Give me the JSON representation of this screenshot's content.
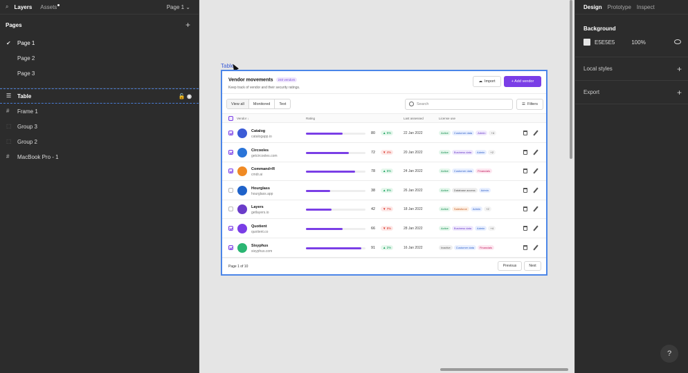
{
  "left_panel": {
    "tabs": {
      "layers": "Layers",
      "assets": "Assets"
    },
    "page_selector": "Page 1 ⌄",
    "pages_header": "Pages",
    "pages": [
      "Page 1",
      "Page 2",
      "Page 3"
    ],
    "layers": [
      "Table",
      "Frame 1",
      "Group 3",
      "Group 2",
      "MacBook Pro - 1"
    ]
  },
  "canvas": {
    "frame_label": "Table",
    "card": {
      "title": "Vendor movements",
      "badge": "240 vendors",
      "subtitle": "Keep track of vendor and their security ratings.",
      "import_label": "Import",
      "add_label": "+ Add vendor",
      "segments": [
        "View all",
        "Monitored",
        "Text"
      ],
      "search_placeholder": "Search",
      "filters_label": "Filters",
      "columns": {
        "vendor": "Vendor ↓",
        "rating": "Rating",
        "last_assessed": "Last assessed",
        "license": "License use"
      },
      "rows": [
        {
          "name": "Catalog",
          "url": "catalogapp.io",
          "score": "80",
          "delta": "▲ 5%",
          "dir": "up",
          "date": "22 Jan 2022",
          "checked": true,
          "rating": 0.62,
          "logo": "#3b5bd6",
          "tags": [
            [
              "Active",
              "green"
            ],
            [
              "Customer data",
              "blue"
            ],
            [
              "Admin",
              "purple"
            ],
            [
              "+4",
              "more"
            ]
          ]
        },
        {
          "name": "Circooles",
          "url": "getcircooles.com",
          "score": "72",
          "delta": "▼ 4%",
          "dir": "down",
          "date": "20 Jan 2022",
          "checked": true,
          "rating": 0.72,
          "logo": "#2a74d8",
          "tags": [
            [
              "Active",
              "green"
            ],
            [
              "Business data",
              "purple"
            ],
            [
              "Admin",
              "blue"
            ],
            [
              "+2",
              "more"
            ]
          ]
        },
        {
          "name": "Command+R",
          "url": "cmdr.ai",
          "score": "78",
          "delta": "▲ 6%",
          "dir": "up",
          "date": "24 Jan 2022",
          "checked": true,
          "rating": 0.83,
          "logo": "#f08a24",
          "tags": [
            [
              "Active",
              "green"
            ],
            [
              "Customer data",
              "blue"
            ],
            [
              "Financials",
              "pink"
            ]
          ]
        },
        {
          "name": "Hourglass",
          "url": "hourglass.app",
          "score": "38",
          "delta": "▲ 8%",
          "dir": "up",
          "date": "26 Jan 2022",
          "checked": false,
          "rating": 0.41,
          "logo": "#1f62c9",
          "tags": [
            [
              "Active",
              "green"
            ],
            [
              "Database access",
              "gray"
            ],
            [
              "Admin",
              "blue"
            ]
          ]
        },
        {
          "name": "Layers",
          "url": "getlayers.io",
          "score": "42",
          "delta": "▼ 7%",
          "dir": "down",
          "date": "18 Jan 2022",
          "checked": false,
          "rating": 0.43,
          "logo": "#6a3cc9",
          "tags": [
            [
              "Active",
              "green"
            ],
            [
              "Salesforce",
              "orange"
            ],
            [
              "Admin",
              "blue"
            ],
            [
              "+2",
              "more"
            ]
          ]
        },
        {
          "name": "Quotient",
          "url": "quotient.co",
          "score": "66",
          "delta": "▼ 8%",
          "dir": "down",
          "date": "28 Jan 2022",
          "checked": true,
          "rating": 0.62,
          "logo": "#7a3ee6",
          "tags": [
            [
              "Active",
              "green"
            ],
            [
              "Business data",
              "purple"
            ],
            [
              "Admin",
              "blue"
            ],
            [
              "+4",
              "more"
            ]
          ]
        },
        {
          "name": "Sisyphus",
          "url": "sisyphus.com",
          "score": "91",
          "delta": "▲ 2%",
          "dir": "up",
          "date": "16 Jan 2022",
          "checked": true,
          "rating": 0.93,
          "logo": "#2bb673",
          "tags": [
            [
              "Inactive",
              "gray"
            ],
            [
              "Customer data",
              "blue"
            ],
            [
              "Financials",
              "pink"
            ]
          ]
        }
      ],
      "footer_page": "Page 1 of 10",
      "prev_label": "Previous",
      "next_label": "Next"
    }
  },
  "right_panel": {
    "tabs": [
      "Design",
      "Prototype",
      "Inspect"
    ],
    "background_header": "Background",
    "background_hex": "E5E5E5",
    "background_opacity": "100%",
    "local_styles": "Local styles",
    "export": "Export",
    "help": "?"
  }
}
